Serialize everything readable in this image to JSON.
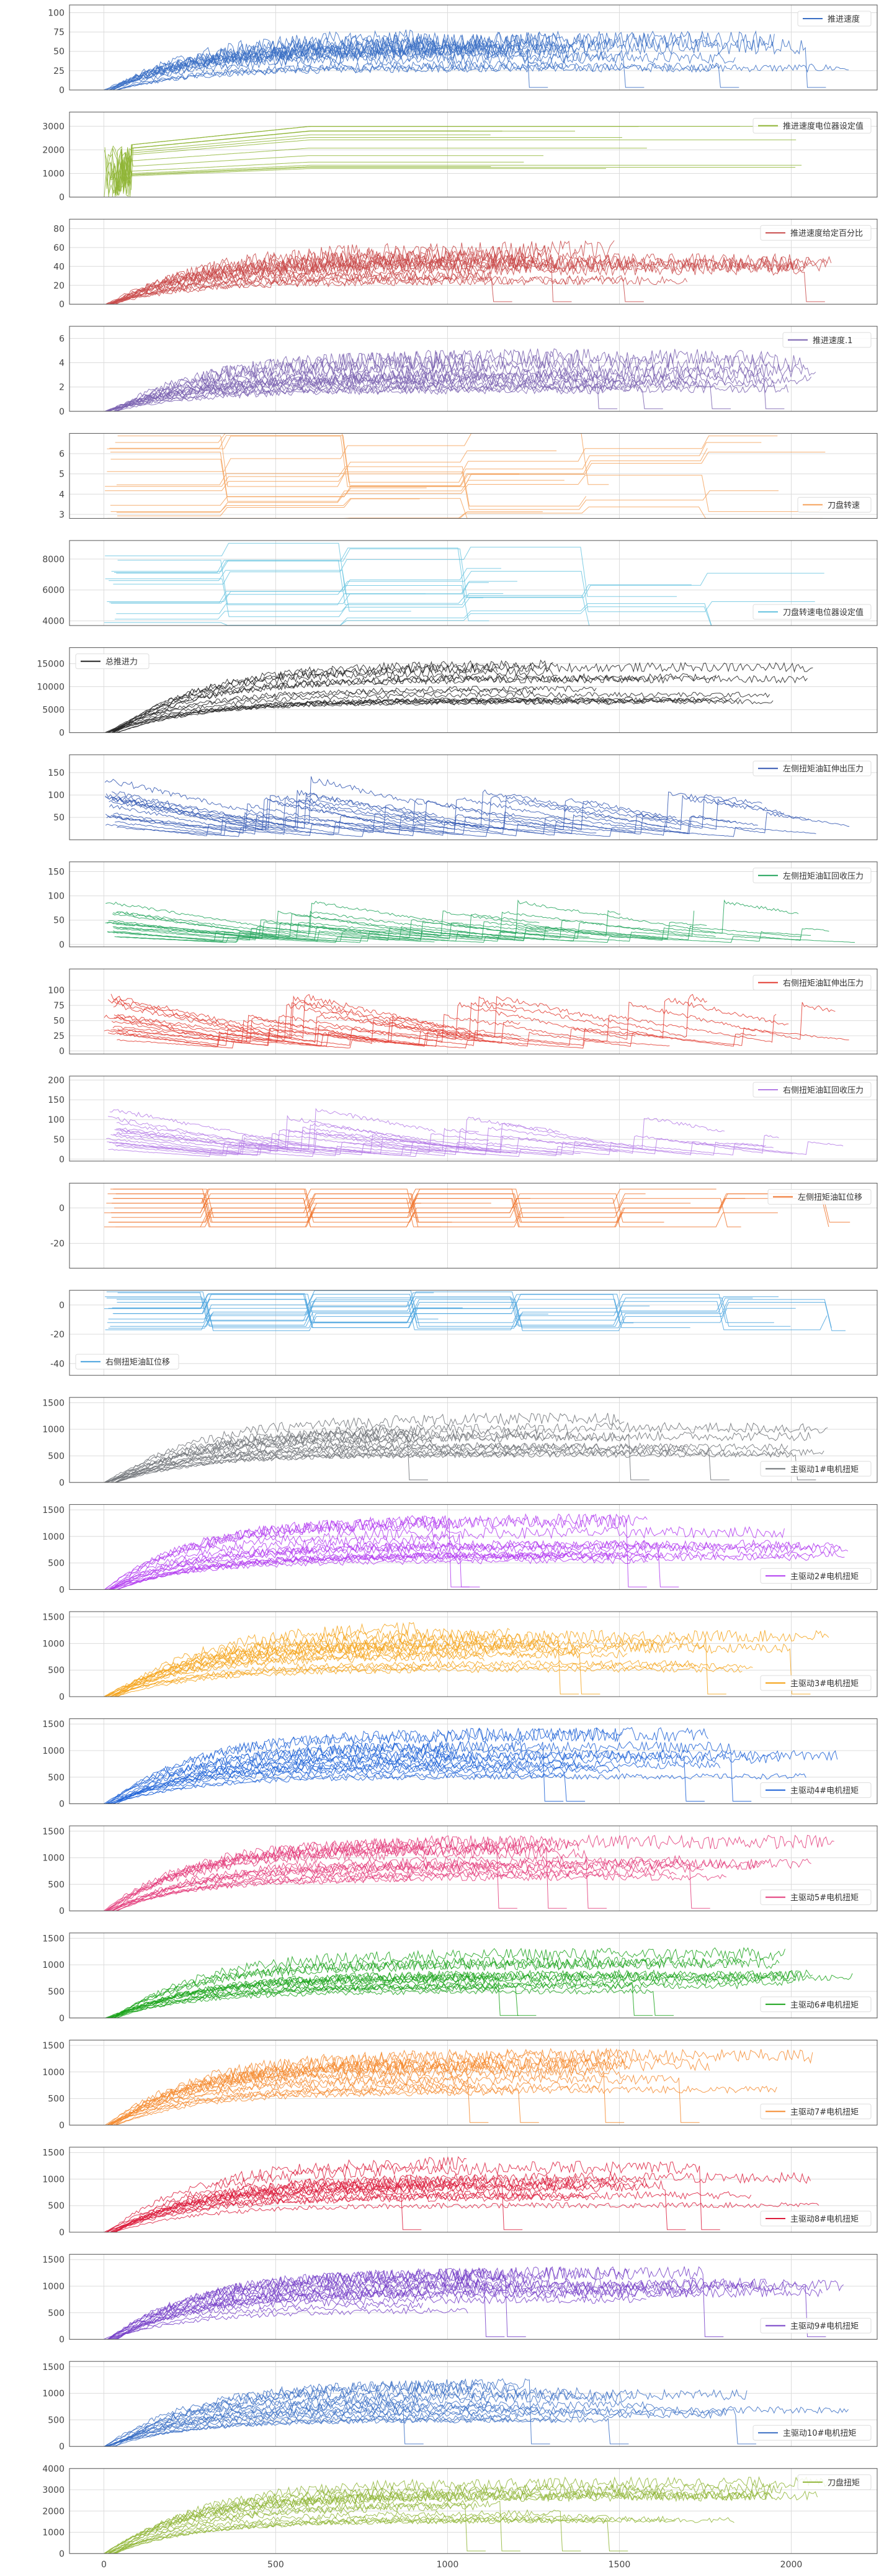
{
  "chart_data": [
    {
      "type": "line",
      "legend": "top-right",
      "legend_label": "推进速度",
      "ylim": [
        0,
        110
      ],
      "yticks": [
        0,
        25,
        50,
        75,
        100
      ],
      "color": "#3a6fc4",
      "profile": "rise",
      "level": 60,
      "noise": 0.18,
      "dips": true,
      "grid": true
    },
    {
      "type": "line",
      "legend": "top-right",
      "legend_label": "推进速度电位器设定值",
      "ylim": [
        0,
        3600
      ],
      "yticks": [
        0,
        1000,
        2000,
        3000
      ],
      "color": "#8fb536",
      "profile": "step_up",
      "level": 2500,
      "noise": 0.05,
      "dips": false,
      "grid": true
    },
    {
      "type": "line",
      "legend": "top-right",
      "legend_label": "推进速度给定百分比",
      "ylim": [
        0,
        90
      ],
      "yticks": [
        0,
        20,
        40,
        60,
        80
      ],
      "color": "#c94a4a",
      "profile": "rise",
      "level": 50,
      "noise": 0.18,
      "dips": true,
      "grid": true
    },
    {
      "type": "line",
      "legend": "top-right",
      "legend_label": "推进速度.1",
      "ylim": [
        0,
        7
      ],
      "yticks": [
        0,
        2,
        4,
        6
      ],
      "color": "#7a62b0",
      "profile": "rise",
      "level": 3.8,
      "noise": 0.18,
      "dips": true,
      "grid": true
    },
    {
      "type": "line",
      "legend": "bottom-right",
      "legend_label": "刀盘转速",
      "ylim": [
        2.8,
        7
      ],
      "yticks": [
        3,
        4,
        5,
        6
      ],
      "color": "#f5a25c",
      "profile": "flat_steps",
      "level": 5.6,
      "noise": 0.0,
      "dips": false,
      "grid": true
    },
    {
      "type": "line",
      "legend": "bottom-right",
      "legend_label": "刀盘转速电位器设定值",
      "ylim": [
        3700,
        9200
      ],
      "yticks": [
        4000,
        6000,
        8000
      ],
      "color": "#6bc5e0",
      "profile": "flat_steps",
      "level": 7500,
      "noise": 0.0,
      "dips": false,
      "grid": true
    },
    {
      "type": "line",
      "legend": "top-left",
      "legend_label": "总推进力",
      "ylim": [
        0,
        18500
      ],
      "yticks": [
        0,
        5000,
        10000,
        15000
      ],
      "color": "#222222",
      "profile": "rise",
      "level": 13500,
      "noise": 0.07,
      "dips": false,
      "grid": true
    },
    {
      "type": "line",
      "legend": "top-right",
      "legend_label": "左侧扭矩油缸伸出压力",
      "ylim": [
        0,
        190
      ],
      "yticks": [
        50,
        100,
        150
      ],
      "color": "#3357b2",
      "profile": "decay",
      "level": 80,
      "noise": 0.06,
      "dips": false,
      "grid": true
    },
    {
      "type": "line",
      "legend": "top-right",
      "legend_label": "左侧扭矩油缸回收压力",
      "ylim": [
        -5,
        170
      ],
      "yticks": [
        0,
        50,
        100,
        150
      ],
      "color": "#21a35a",
      "profile": "decay",
      "level": 50,
      "noise": 0.04,
      "dips": false,
      "grid": true
    },
    {
      "type": "line",
      "legend": "top-right",
      "legend_label": "右侧扭矩油缸伸出压力",
      "ylim": [
        -5,
        135
      ],
      "yticks": [
        0,
        25,
        50,
        75,
        100
      ],
      "color": "#e23b30",
      "profile": "decay",
      "level": 55,
      "noise": 0.06,
      "dips": false,
      "grid": true
    },
    {
      "type": "line",
      "legend": "top-right",
      "legend_label": "右侧扭矩油缸回收压力",
      "ylim": [
        -5,
        210
      ],
      "yticks": [
        0,
        50,
        100,
        150,
        200
      ],
      "color": "#b57de6",
      "profile": "decay",
      "level": 70,
      "noise": 0.05,
      "dips": false,
      "grid": true
    },
    {
      "type": "line",
      "legend": "top-right",
      "legend_label": "左侧扭矩油缸位移",
      "ylim": [
        -34,
        14
      ],
      "yticks": [
        -20,
        0
      ],
      "color": "#f0742d",
      "profile": "steps_mixed",
      "level": 0,
      "noise": 0.0,
      "dips": false,
      "grid": true
    },
    {
      "type": "line",
      "legend": "bottom-left",
      "legend_label": "右侧扭矩油缸位移",
      "ylim": [
        -48,
        10
      ],
      "yticks": [
        -40,
        -20,
        0
      ],
      "color": "#4aa3de",
      "profile": "steps_mixed",
      "level": -5,
      "noise": 0.0,
      "dips": false,
      "grid": true
    },
    {
      "type": "line",
      "legend": "bottom-right",
      "legend_label": "主驱动1#电机扭矩",
      "ylim": [
        0,
        1600
      ],
      "yticks": [
        0,
        500,
        1000,
        1500
      ],
      "color": "#6e7277",
      "profile": "rise",
      "level": 1100,
      "noise": 0.1,
      "dips": true,
      "grid": true
    },
    {
      "type": "line",
      "legend": "bottom-right",
      "legend_label": "主驱动2#电机扭矩",
      "ylim": [
        0,
        1600
      ],
      "yticks": [
        0,
        500,
        1000,
        1500
      ],
      "color": "#b13af0",
      "profile": "rise",
      "level": 1100,
      "noise": 0.1,
      "dips": true,
      "grid": true
    },
    {
      "type": "line",
      "legend": "bottom-right",
      "legend_label": "主驱动3#电机扭矩",
      "ylim": [
        0,
        1600
      ],
      "yticks": [
        0,
        500,
        1000,
        1500
      ],
      "color": "#f5a31a",
      "profile": "rise",
      "level": 1100,
      "noise": 0.1,
      "dips": true,
      "grid": true
    },
    {
      "type": "line",
      "legend": "bottom-right",
      "legend_label": "主驱动4#电机扭矩",
      "ylim": [
        0,
        1600
      ],
      "yticks": [
        0,
        500,
        1000,
        1500
      ],
      "color": "#1a5fd6",
      "profile": "rise",
      "level": 1100,
      "noise": 0.1,
      "dips": true,
      "grid": true
    },
    {
      "type": "line",
      "legend": "bottom-right",
      "legend_label": "主驱动5#电机扭矩",
      "ylim": [
        0,
        1600
      ],
      "yticks": [
        0,
        500,
        1000,
        1500
      ],
      "color": "#e33b7a",
      "profile": "rise",
      "level": 1100,
      "noise": 0.1,
      "dips": true,
      "grid": true
    },
    {
      "type": "line",
      "legend": "bottom-right",
      "legend_label": "主驱动6#电机扭矩",
      "ylim": [
        0,
        1600
      ],
      "yticks": [
        0,
        500,
        1000,
        1500
      ],
      "color": "#1aa31a",
      "profile": "rise",
      "level": 1100,
      "noise": 0.1,
      "dips": true,
      "grid": true
    },
    {
      "type": "line",
      "legend": "bottom-right",
      "legend_label": "主驱动7#电机扭矩",
      "ylim": [
        0,
        1600
      ],
      "yticks": [
        0,
        500,
        1000,
        1500
      ],
      "color": "#f58a2e",
      "profile": "rise",
      "level": 1100,
      "noise": 0.1,
      "dips": true,
      "grid": true
    },
    {
      "type": "line",
      "legend": "bottom-right",
      "legend_label": "主驱动8#电机扭矩",
      "ylim": [
        0,
        1600
      ],
      "yticks": [
        0,
        500,
        1000,
        1500
      ],
      "color": "#dc1c3c",
      "profile": "rise",
      "level": 1100,
      "noise": 0.1,
      "dips": true,
      "grid": true
    },
    {
      "type": "line",
      "legend": "bottom-right",
      "legend_label": "主驱动9#电机扭矩",
      "ylim": [
        0,
        1600
      ],
      "yticks": [
        0,
        500,
        1000,
        1500
      ],
      "color": "#7640c8",
      "profile": "rise",
      "level": 1100,
      "noise": 0.1,
      "dips": true,
      "grid": true
    },
    {
      "type": "line",
      "legend": "bottom-right",
      "legend_label": "主驱动10#电机扭矩",
      "ylim": [
        0,
        1600
      ],
      "yticks": [
        0,
        500,
        1000,
        1500
      ],
      "color": "#3a6fc4",
      "profile": "rise",
      "level": 1100,
      "noise": 0.1,
      "dips": true,
      "grid": true
    },
    {
      "type": "line",
      "legend": "top-right",
      "legend_label": "刀盘扭矩",
      "ylim": [
        0,
        4000
      ],
      "yticks": [
        0,
        1000,
        2000,
        3000,
        4000
      ],
      "color": "#8fb536",
      "profile": "rise",
      "level": 2800,
      "noise": 0.08,
      "dips": true,
      "grid": true
    }
  ],
  "shared_x": {
    "xlim": [
      -100,
      2250
    ],
    "xticks": [
      0,
      500,
      1000,
      1500,
      2000
    ]
  }
}
